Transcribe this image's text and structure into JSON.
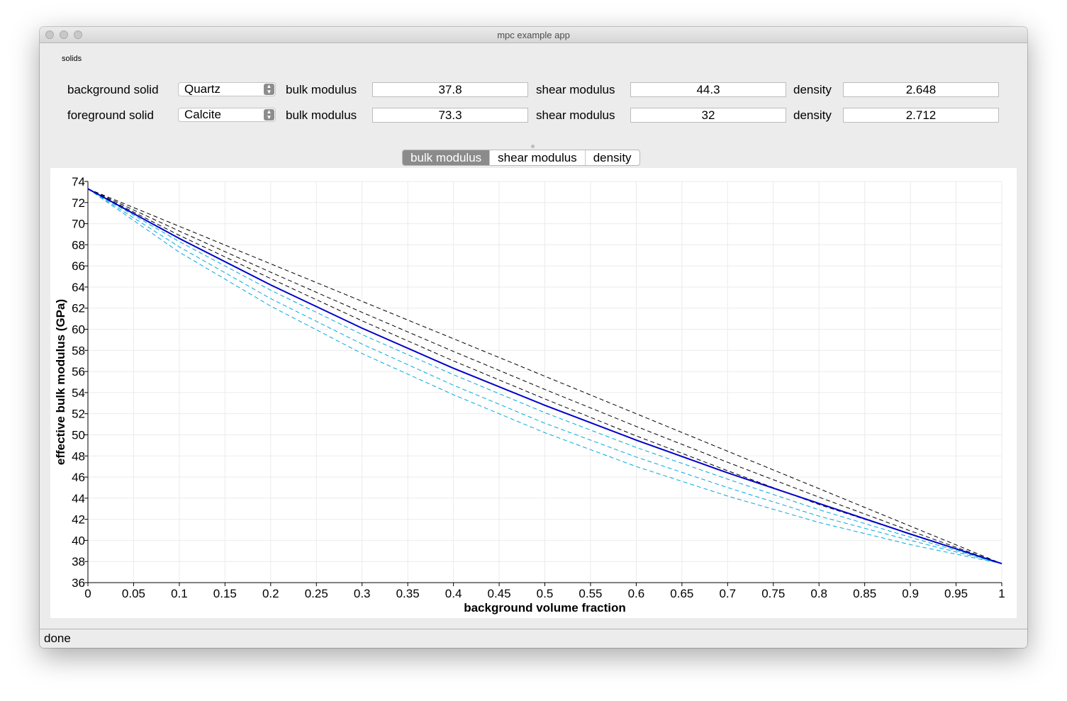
{
  "window": {
    "title": "mpc example app"
  },
  "solids": {
    "group_label": "solids",
    "rows": [
      {
        "label": "background solid",
        "material": "Quartz",
        "bulk_label": "bulk modulus",
        "bulk": "37.8",
        "shear_label": "shear modulus",
        "shear": "44.3",
        "density_label": "density",
        "density": "2.648"
      },
      {
        "label": "foreground solid",
        "material": "Calcite",
        "bulk_label": "bulk modulus",
        "bulk": "73.3",
        "shear_label": "shear modulus",
        "shear": "32",
        "density_label": "density",
        "density": "2.712"
      }
    ]
  },
  "tabs": [
    {
      "label": "bulk modulus",
      "active": true
    },
    {
      "label": "shear modulus",
      "active": false
    },
    {
      "label": "density",
      "active": false
    }
  ],
  "status": {
    "text": "done"
  },
  "colors": {
    "main_curve": "#0000cc",
    "upper_bounds": "#000000",
    "lower_bounds": "#00a9e0"
  },
  "chart_data": {
    "type": "line",
    "xlabel": "background volume fraction",
    "ylabel": "effective bulk modulus (GPa)",
    "xlim": [
      0,
      1
    ],
    "ylim": [
      36,
      74
    ],
    "grid": true,
    "x_ticks": [
      "0",
      "0.05",
      "0.1",
      "0.15",
      "0.2",
      "0.25",
      "0.3",
      "0.35",
      "0.4",
      "0.45",
      "0.5",
      "0.55",
      "0.6",
      "0.65",
      "0.7",
      "0.75",
      "0.8",
      "0.85",
      "0.9",
      "0.95",
      "1"
    ],
    "y_ticks": [
      "36",
      "38",
      "40",
      "42",
      "44",
      "46",
      "48",
      "50",
      "52",
      "54",
      "56",
      "58",
      "60",
      "62",
      "64",
      "66",
      "68",
      "70",
      "72",
      "74"
    ],
    "x": [
      0,
      0.1,
      0.2,
      0.3,
      0.4,
      0.5,
      0.6,
      0.7,
      0.8,
      0.9,
      1.0
    ],
    "series": [
      {
        "style": "solid",
        "color": "#0000cc",
        "values": [
          73.3,
          68.6,
          64.2,
          60.1,
          56.3,
          52.8,
          49.5,
          46.4,
          43.5,
          40.6,
          37.8
        ]
      },
      {
        "style": "dashed",
        "color": "#000000",
        "values": [
          73.3,
          69.75,
          66.2,
          62.65,
          59.1,
          55.55,
          52.0,
          48.45,
          44.9,
          41.35,
          37.8
        ]
      },
      {
        "style": "dashed",
        "color": "#000000",
        "values": [
          73.3,
          69.3,
          65.4,
          61.6,
          57.9,
          54.3,
          50.8,
          47.4,
          44.1,
          40.9,
          37.8
        ]
      },
      {
        "style": "dashed",
        "color": "#000000",
        "values": [
          73.3,
          68.9,
          64.8,
          60.8,
          57.0,
          53.4,
          49.9,
          46.6,
          43.4,
          40.6,
          37.8
        ]
      },
      {
        "style": "dashed",
        "color": "#00a9e0",
        "values": [
          73.3,
          68.3,
          63.7,
          59.5,
          55.7,
          52.1,
          48.8,
          45.8,
          42.9,
          40.3,
          37.8
        ]
      },
      {
        "style": "dashed",
        "color": "#00a9e0",
        "values": [
          73.3,
          67.8,
          62.9,
          58.6,
          54.7,
          51.1,
          47.9,
          45.0,
          42.3,
          40.0,
          37.8
        ]
      },
      {
        "style": "dashed",
        "color": "#00a9e0",
        "values": [
          73.3,
          67.3,
          62.2,
          57.7,
          53.8,
          50.2,
          47.0,
          44.2,
          41.7,
          39.6,
          37.8
        ]
      }
    ]
  }
}
